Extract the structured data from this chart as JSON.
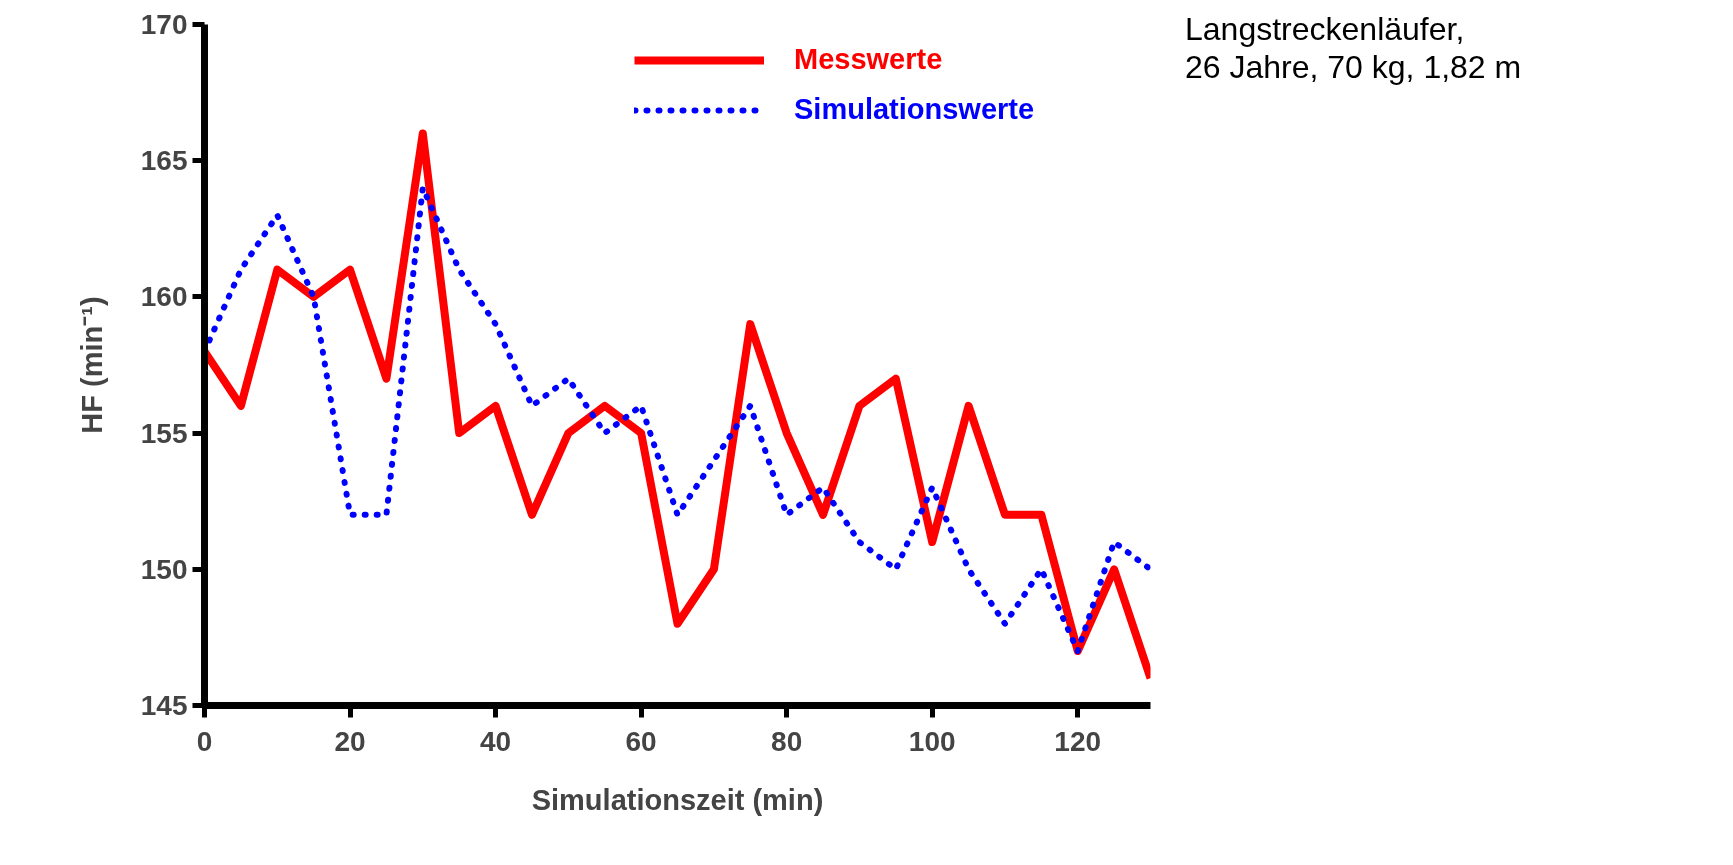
{
  "chart_data": {
    "type": "line",
    "xlabel": "Simulationszeit (min)",
    "ylabel": "HF (min⁻¹)",
    "x": [
      0,
      5,
      10,
      15,
      20,
      25,
      30,
      35,
      40,
      45,
      50,
      55,
      60,
      65,
      70,
      75,
      80,
      85,
      90,
      95,
      100,
      105,
      110,
      115,
      120,
      125,
      130
    ],
    "series": [
      {
        "name": "Messwerte",
        "color": "#ff0000",
        "line_style": "solid",
        "values": [
          158,
          156,
          161,
          160,
          161,
          157,
          166,
          155,
          156,
          152,
          155,
          156,
          155,
          148,
          150,
          159,
          155,
          152,
          156,
          157,
          151,
          156,
          152,
          152,
          147,
          150,
          146
        ]
      },
      {
        "name": "Simulationswerte",
        "color": "#0000ff",
        "line_style": "dotted",
        "values": [
          158,
          161,
          163,
          160,
          152,
          152,
          164,
          161,
          159,
          156,
          157,
          155,
          156,
          152,
          154,
          156,
          152,
          153,
          151,
          150,
          153,
          150,
          148,
          150,
          147,
          151,
          150
        ]
      }
    ],
    "xlim": [
      0,
      130
    ],
    "xticks": [
      0,
      20,
      40,
      60,
      80,
      100,
      120
    ],
    "ylim": [
      145,
      170
    ],
    "yticks": [
      145,
      150,
      155,
      160,
      165,
      170
    ],
    "grid": false,
    "legend": "top right",
    "marker": "none",
    "annotations": [
      "Langstreckenläufer,\n26 Jahre, 70 kg, 1,82 m"
    ]
  }
}
